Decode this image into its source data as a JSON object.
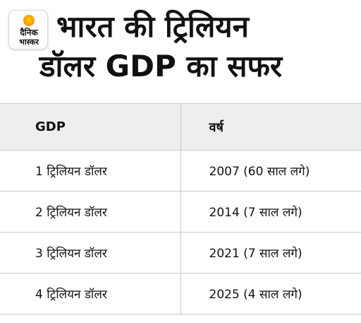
{
  "logo": {
    "line1": "दैनिक",
    "line2": "भास्कर"
  },
  "title": {
    "line1": "भारत की ट्रिलियन",
    "line2": "डॉलर GDP का सफर"
  },
  "table": {
    "headers": [
      "GDP",
      "वर्ष"
    ],
    "rows": [
      [
        "1 ट्रिलियन डॉलर",
        "2007 (60 साल लगे)"
      ],
      [
        "2 ट्रिलियन डॉलर",
        "2014  (7 साल लगे)"
      ],
      [
        "3 ट्रिलियन डॉलर",
        "2021 (7 साल लगे)"
      ],
      [
        "4 ट्रिलियन डॉलर",
        "2025  (4 साल लगे)"
      ]
    ]
  },
  "colors": {
    "header_bg": "#eeeeee",
    "border": "#c9c9c9",
    "text": "#111111",
    "logo_sun": "#ff9e00"
  }
}
